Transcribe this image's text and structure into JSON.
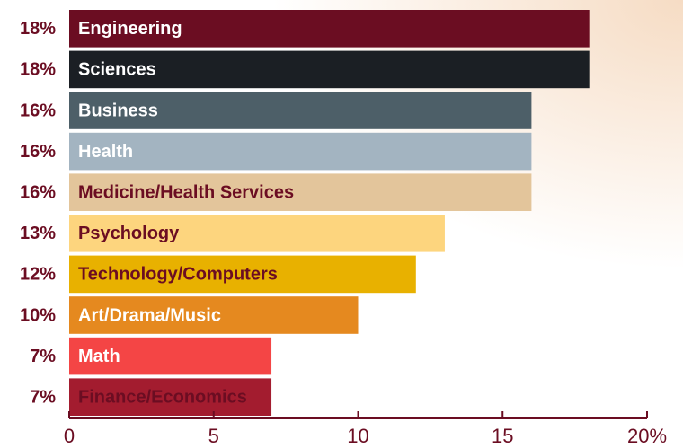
{
  "chart_data": {
    "type": "bar",
    "orientation": "horizontal",
    "categories": [
      "Engineering",
      "Sciences",
      "Business",
      "Health",
      "Medicine/Health Services",
      "Psychology",
      "Technology/Computers",
      "Art/Drama/Music",
      "Math",
      "Finance/Economics"
    ],
    "values": [
      18,
      18,
      16,
      16,
      16,
      13,
      12,
      10,
      7,
      7
    ],
    "value_labels": [
      "18%",
      "18%",
      "16%",
      "16%",
      "16%",
      "13%",
      "12%",
      "10%",
      "7%",
      "7%"
    ],
    "colors": [
      "#6b0d22",
      "#1b1f24",
      "#4d5f68",
      "#a3b4c1",
      "#e3c59b",
      "#fdd57e",
      "#e8b100",
      "#e5891f",
      "#f44545",
      "#a31c2f"
    ],
    "label_colors": [
      "#ffffff",
      "#ffffff",
      "#ffffff",
      "#ffffff",
      "#6b0d22",
      "#6b0d22",
      "#6b0d22",
      "#ffffff",
      "#ffffff",
      "#6b0d22"
    ],
    "xlim": [
      0,
      20
    ],
    "xticks": [
      0,
      5,
      10,
      15,
      {
        "value": 20,
        "label": "20%"
      }
    ]
  }
}
